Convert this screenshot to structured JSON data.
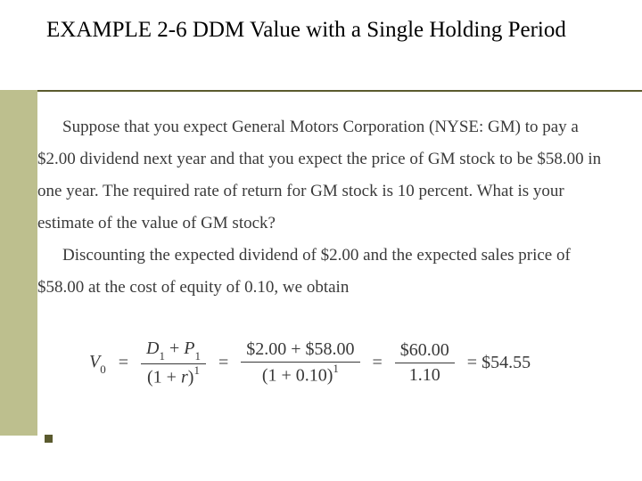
{
  "title": "EXAMPLE 2-6 DDM Value with a Single Holding Period",
  "para1": "Suppose that you expect General Motors Corporation (NYSE: GM) to pay a $2.00 dividend next year and that you expect the price of GM stock to be $58.00 in one year. The required rate of return for GM stock is 10 percent. What is your estimate of the value of GM stock?",
  "para2": "Discounting the expected dividend of $2.00 and the expected sales price of $58.00 at the cost of equity of 0.10, we obtain",
  "formula": {
    "lhs": "V",
    "lhs_sub": "0",
    "frac1_num_a": "D",
    "frac1_num_a_sub": "1",
    "frac1_num_plus": " + ",
    "frac1_num_b": "P",
    "frac1_num_b_sub": "1",
    "frac1_den_a": "(1 + ",
    "frac1_den_b": "r",
    "frac1_den_c": ")",
    "frac1_den_sup": "1",
    "frac2_num": "$2.00 + $58.00",
    "frac2_den_a": "(1 + 0.10)",
    "frac2_den_sup": "1",
    "frac3_num": "$60.00",
    "frac3_den": "1.10",
    "result": "= $54.55",
    "eq": "="
  },
  "colors": {
    "sidebar": "#bdbf8e",
    "rule": "#5a5a2e",
    "text": "#3a3a3a",
    "title": "#000000"
  }
}
